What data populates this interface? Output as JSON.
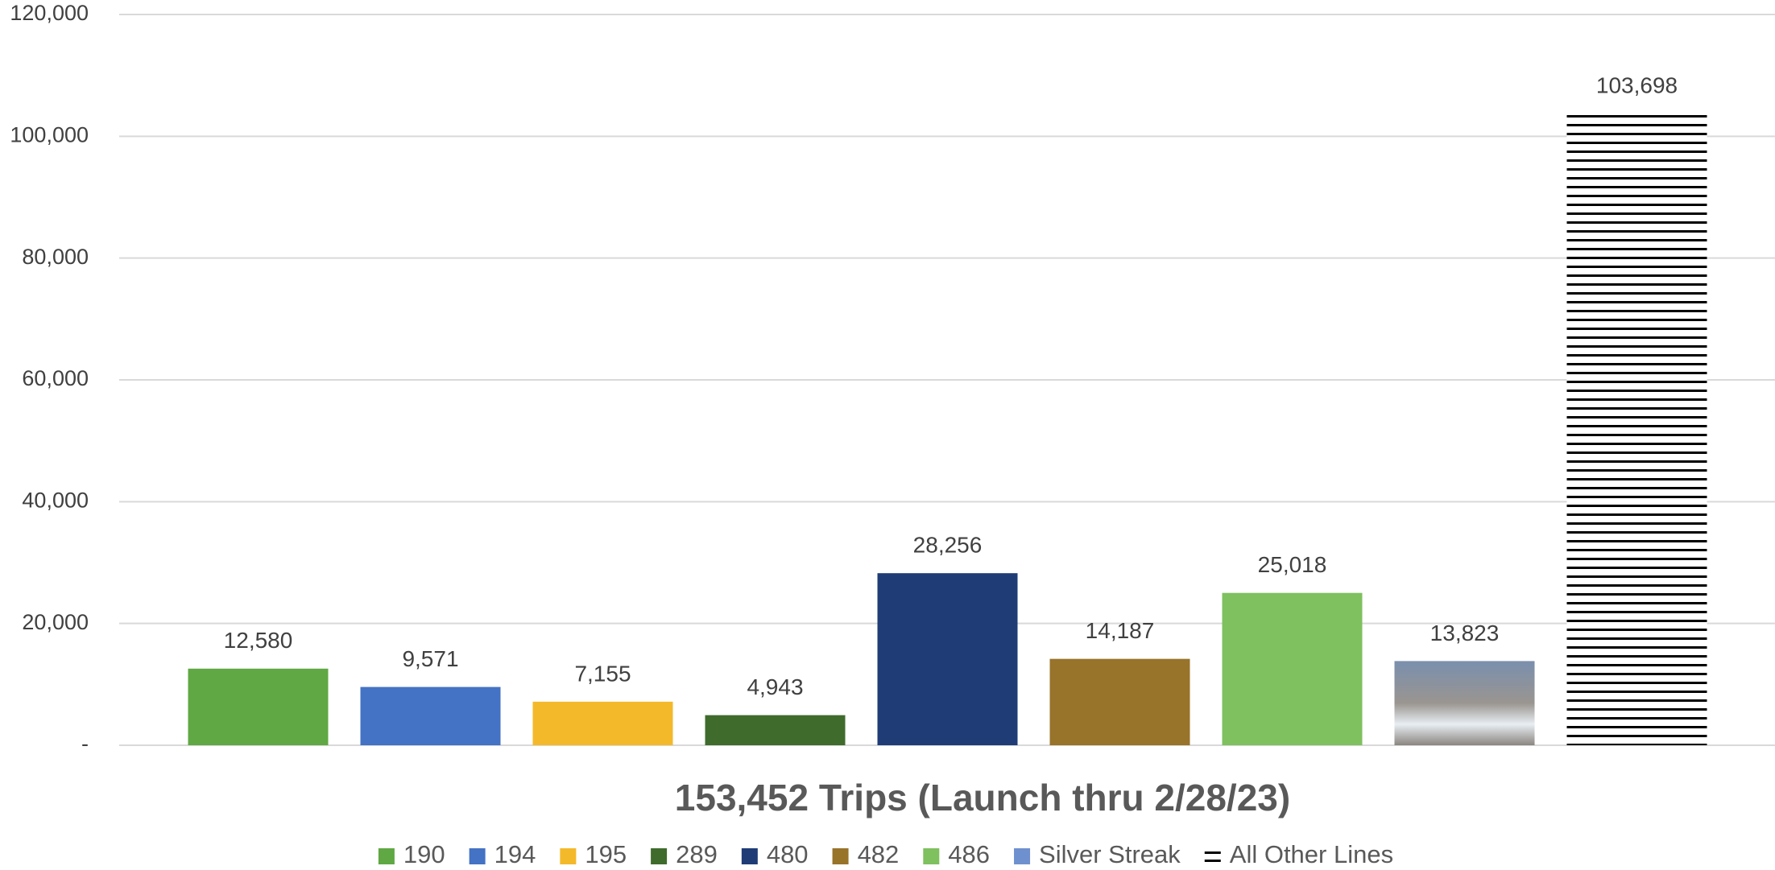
{
  "chart_data": {
    "type": "bar",
    "title": "153,452 Trips (Launch thru 2/28/23)",
    "ylim": [
      0,
      120000
    ],
    "yticks": [
      {
        "value": 0,
        "label": "-"
      },
      {
        "value": 20000,
        "label": "20,000"
      },
      {
        "value": 40000,
        "label": "40,000"
      },
      {
        "value": 60000,
        "label": "60,000"
      },
      {
        "value": 80000,
        "label": "80,000"
      },
      {
        "value": 100000,
        "label": "100,000"
      },
      {
        "value": 120000,
        "label": "120,000"
      }
    ],
    "grid": true,
    "legend": "bottom",
    "series": [
      {
        "name": "190",
        "color": "#5fa843",
        "values": [
          12580
        ],
        "value_labels": [
          "12,580"
        ]
      },
      {
        "name": "194",
        "color": "#4472c4",
        "values": [
          9571
        ],
        "value_labels": [
          "9,571"
        ]
      },
      {
        "name": "195",
        "color": "#f4b92a",
        "values": [
          7155
        ],
        "value_labels": [
          "7,155"
        ]
      },
      {
        "name": "289",
        "color": "#3f6b2c",
        "values": [
          4943
        ],
        "value_labels": [
          "4,943"
        ]
      },
      {
        "name": "480",
        "color": "#1f3c77",
        "values": [
          28256
        ],
        "value_labels": [
          "28,256"
        ]
      },
      {
        "name": "482",
        "color": "#98732a",
        "values": [
          14187
        ],
        "value_labels": [
          "14,187"
        ]
      },
      {
        "name": "486",
        "color": "#7fc05f",
        "values": [
          25018
        ],
        "value_labels": [
          "25,018"
        ]
      },
      {
        "name": "Silver Streak",
        "color": "#6f90cf",
        "values": [
          13823
        ],
        "value_labels": [
          "13,823"
        ]
      },
      {
        "name": "All Other Lines",
        "color": "#000000",
        "hatch": "horizontal",
        "values": [
          103698
        ],
        "value_labels": [
          "103,698"
        ]
      }
    ]
  }
}
